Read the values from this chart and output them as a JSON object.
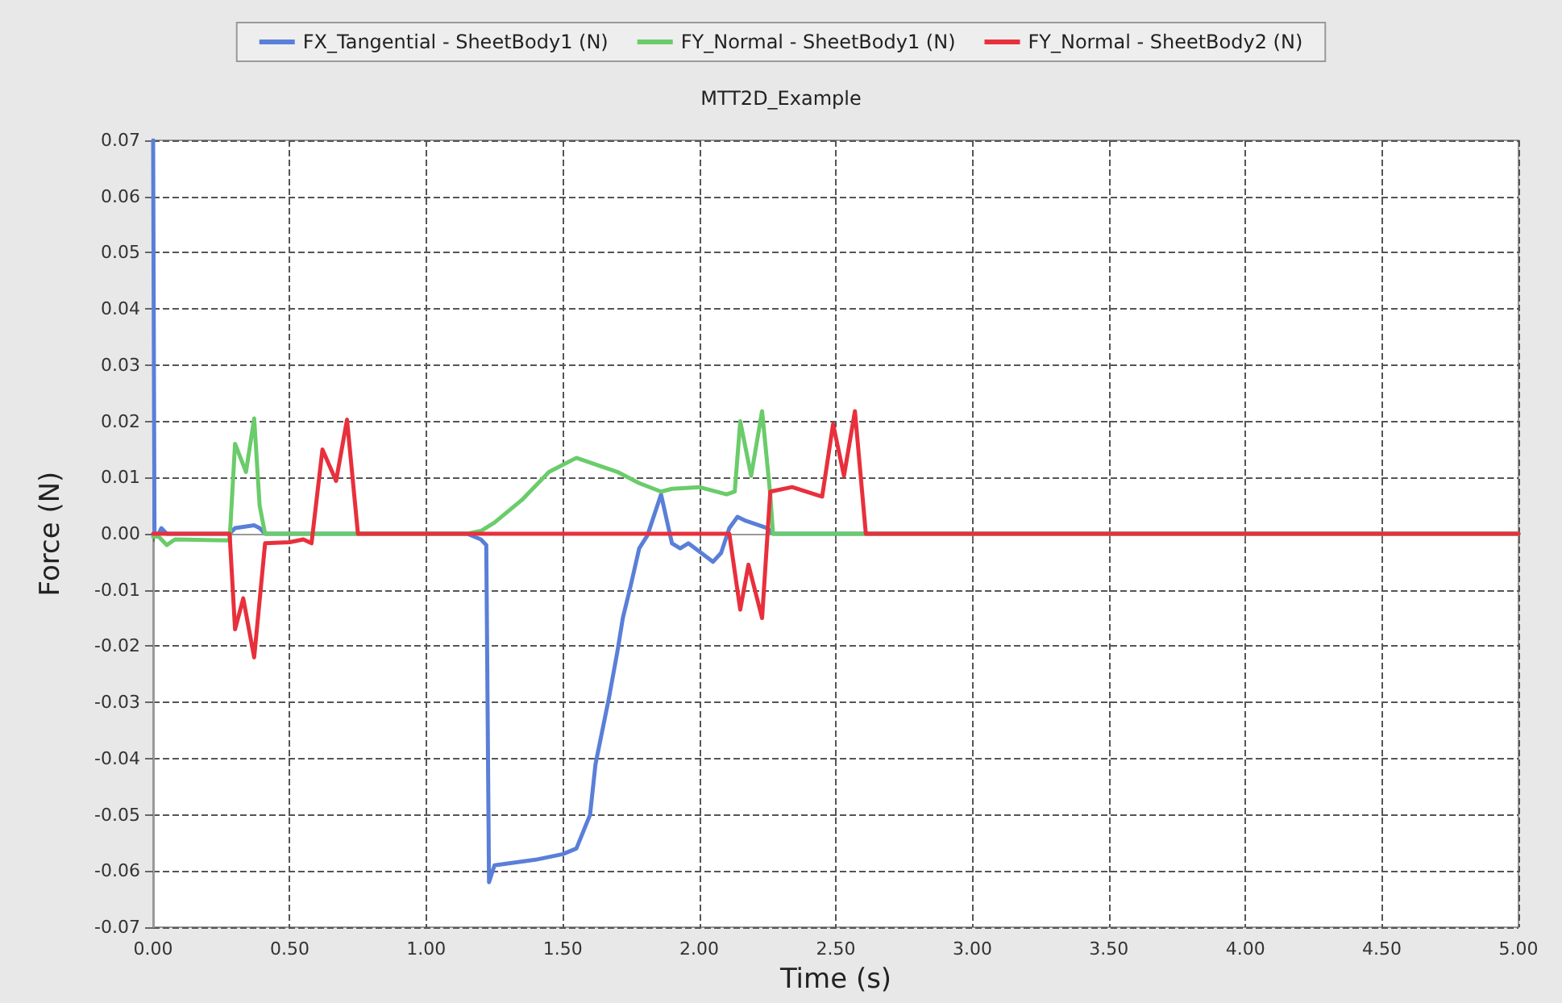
{
  "chart_data": {
    "type": "line",
    "title": "MTT2D_Example",
    "xlabel": "Time (s)",
    "ylabel": "Force (N)",
    "legend": "top",
    "grid": true,
    "marker": "none",
    "line_style": "solid",
    "xlim": [
      0,
      5
    ],
    "ylim": [
      -0.07,
      0.07
    ],
    "xticks": [
      {
        "value": 0,
        "label": "0.00"
      },
      {
        "value": 0.5,
        "label": "0.50"
      },
      {
        "value": 1,
        "label": "1.00"
      },
      {
        "value": 1.5,
        "label": "1.50"
      },
      {
        "value": 2,
        "label": "2.00"
      },
      {
        "value": 2.5,
        "label": "2.50"
      },
      {
        "value": 3,
        "label": "3.00"
      },
      {
        "value": 3.5,
        "label": "3.50"
      },
      {
        "value": 4,
        "label": "4.00"
      },
      {
        "value": 4.5,
        "label": "4.50"
      },
      {
        "value": 5,
        "label": "5.00"
      }
    ],
    "yticks": [
      {
        "value": -0.07,
        "label": "-0.07"
      },
      {
        "value": -0.06,
        "label": "-0.06"
      },
      {
        "value": -0.05,
        "label": "-0.05"
      },
      {
        "value": -0.04,
        "label": "-0.04"
      },
      {
        "value": -0.03,
        "label": "-0.03"
      },
      {
        "value": -0.02,
        "label": "-0.02"
      },
      {
        "value": -0.01,
        "label": "-0.01"
      },
      {
        "value": 0,
        "label": "0.00"
      },
      {
        "value": 0.01,
        "label": "0.01"
      },
      {
        "value": 0.02,
        "label": "0.02"
      },
      {
        "value": 0.03,
        "label": "0.03"
      },
      {
        "value": 0.04,
        "label": "0.04"
      },
      {
        "value": 0.05,
        "label": "0.05"
      },
      {
        "value": 0.06,
        "label": "0.06"
      },
      {
        "value": 0.07,
        "label": "0.07"
      }
    ],
    "series": [
      {
        "name": "FX_Tangential - SheetBody1 (N)",
        "color": "#5a7fd8",
        "x": [
          0,
          0.005,
          0.02,
          0.03,
          0.05,
          0.28,
          0.3,
          0.37,
          0.39,
          0.41,
          1.15,
          1.2,
          1.22,
          1.23,
          1.25,
          1.4,
          1.5,
          1.55,
          1.6,
          1.62,
          1.67,
          1.7,
          1.72,
          1.75,
          1.78,
          1.81,
          1.86,
          1.9,
          1.93,
          1.96,
          2.05,
          2.08,
          2.11,
          2.14,
          2.17,
          2.25,
          2.27,
          5
        ],
        "values": [
          0.07,
          0,
          0,
          0.001,
          0,
          0,
          0.001,
          0.0015,
          0.001,
          0,
          0,
          -0.001,
          -0.002,
          -0.062,
          -0.059,
          -0.058,
          -0.057,
          -0.056,
          -0.05,
          -0.041,
          -0.029,
          -0.021,
          -0.015,
          -0.009,
          -0.0026,
          -0.0003,
          0.007,
          -0.0017,
          -0.0026,
          -0.0017,
          -0.005,
          -0.0034,
          0.001,
          0.003,
          0.0023,
          0.001,
          0,
          0
        ]
      },
      {
        "name": "FY_Normal - SheetBody1 (N)",
        "color": "#6acc6a",
        "x": [
          0,
          0.02,
          0.05,
          0.08,
          0.28,
          0.3,
          0.34,
          0.37,
          0.39,
          0.41,
          1.15,
          1.2,
          1.25,
          1.35,
          1.45,
          1.55,
          1.64,
          1.7,
          1.78,
          1.86,
          1.9,
          2.0,
          2.1,
          2.13,
          2.15,
          2.19,
          2.23,
          2.26,
          2.27,
          5
        ],
        "values": [
          -0.0005,
          -0.0005,
          -0.002,
          -0.001,
          -0.0012,
          0.016,
          0.011,
          0.0205,
          0.005,
          0,
          0,
          0.0005,
          0.002,
          0.006,
          0.011,
          0.0135,
          0.012,
          0.011,
          0.009,
          0.0075,
          0.008,
          0.0083,
          0.007,
          0.0075,
          0.02,
          0.0103,
          0.0218,
          0.007,
          0,
          0
        ]
      },
      {
        "name": "FY_Normal - SheetBody2 (N)",
        "color": "#e8303c",
        "x": [
          0,
          0.28,
          0.3,
          0.33,
          0.37,
          0.41,
          0.5,
          0.55,
          0.58,
          0.62,
          0.67,
          0.71,
          0.75,
          2.11,
          2.15,
          2.18,
          2.23,
          2.26,
          2.34,
          2.45,
          2.49,
          2.53,
          2.57,
          2.61,
          5
        ],
        "values": [
          0,
          0,
          -0.017,
          -0.0115,
          -0.022,
          -0.0017,
          -0.0015,
          -0.001,
          -0.0017,
          0.015,
          0.0094,
          0.0203,
          0,
          0,
          -0.0135,
          -0.0055,
          -0.015,
          0.0075,
          0.0083,
          0.0066,
          0.0195,
          0.0103,
          0.0218,
          0,
          0
        ]
      }
    ]
  }
}
